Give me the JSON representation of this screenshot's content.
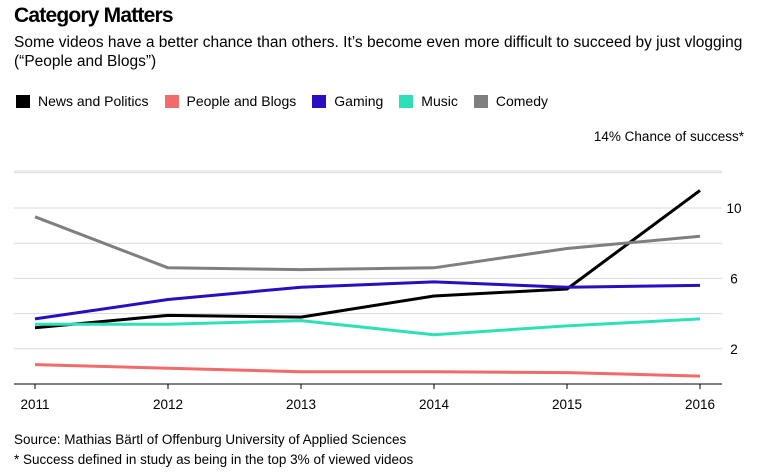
{
  "header": {
    "title": "Category Matters",
    "subtitle": "Some videos have a better chance than others. It’s become even more difficult to succeed by just vlogging (“People and Blogs”)"
  },
  "footer": {
    "source": "Source: Mathias Bärtl of Offenburg University of Applied Sciences",
    "note": "* Success defined in study as being in the top 3% of viewed videos"
  },
  "chart_data": {
    "type": "line",
    "title": "Category Matters",
    "subtitle": "Some videos have a better chance than others. It’s become even more difficult to succeed by just vlogging (“People and Blogs”)",
    "xlabel": "",
    "ylabel": "14% Chance of success*",
    "x": [
      "2011",
      "2012",
      "2013",
      "2014",
      "2015",
      "2016"
    ],
    "ylim": [
      0,
      14
    ],
    "yticks": [
      2,
      6,
      10
    ],
    "ytick_labels": [
      "2",
      "6",
      "10"
    ],
    "grid": true,
    "legend_position": "top-left",
    "series": [
      {
        "name": "News and Politics",
        "color": "#000000",
        "values": [
          3.2,
          3.9,
          3.8,
          5.0,
          5.4,
          11.0
        ]
      },
      {
        "name": "People and Blogs",
        "color": "#f16b6b",
        "values": [
          1.1,
          0.9,
          0.7,
          0.7,
          0.65,
          0.45
        ]
      },
      {
        "name": "Gaming",
        "color": "#2a0ec0",
        "values": [
          3.7,
          4.8,
          5.5,
          5.8,
          5.5,
          5.6
        ]
      },
      {
        "name": "Music",
        "color": "#2ee0b8",
        "values": [
          3.4,
          3.4,
          3.6,
          2.8,
          3.3,
          3.7
        ]
      },
      {
        "name": "Comedy",
        "color": "#7f7f7f",
        "values": [
          9.5,
          6.6,
          6.5,
          6.6,
          7.7,
          8.4
        ]
      }
    ]
  }
}
